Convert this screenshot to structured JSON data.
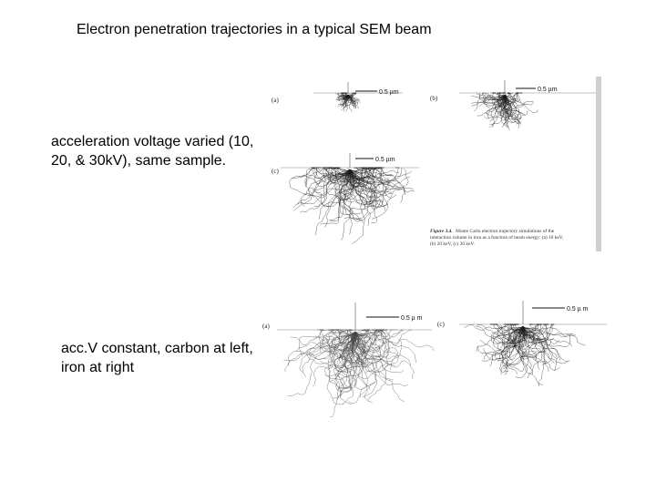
{
  "slide": {
    "title": "Electron penetration trajectories in a typical SEM beam",
    "caption_voltage": "acceleration voltage varied (10, 20, & 30kV), same sample.",
    "caption_material": "acc.V constant, carbon at left, iron at right"
  },
  "figure_top": {
    "panel_labels": [
      "(a)",
      "(b)",
      "(c)"
    ],
    "scale_label": "0.5 µm",
    "caption_figure": "Figure 3.4.",
    "caption_lines": [
      "Monte Carlo electron trajectory simulations of the",
      "interaction volume in iron as a function of beam energy: (a) 10 keV,",
      "(b) 20 keV, (c) 30 keV."
    ]
  },
  "figure_bottom": {
    "panel_labels": [
      "(a)",
      "(c)"
    ],
    "scale_label": "0.5 µ m"
  }
}
